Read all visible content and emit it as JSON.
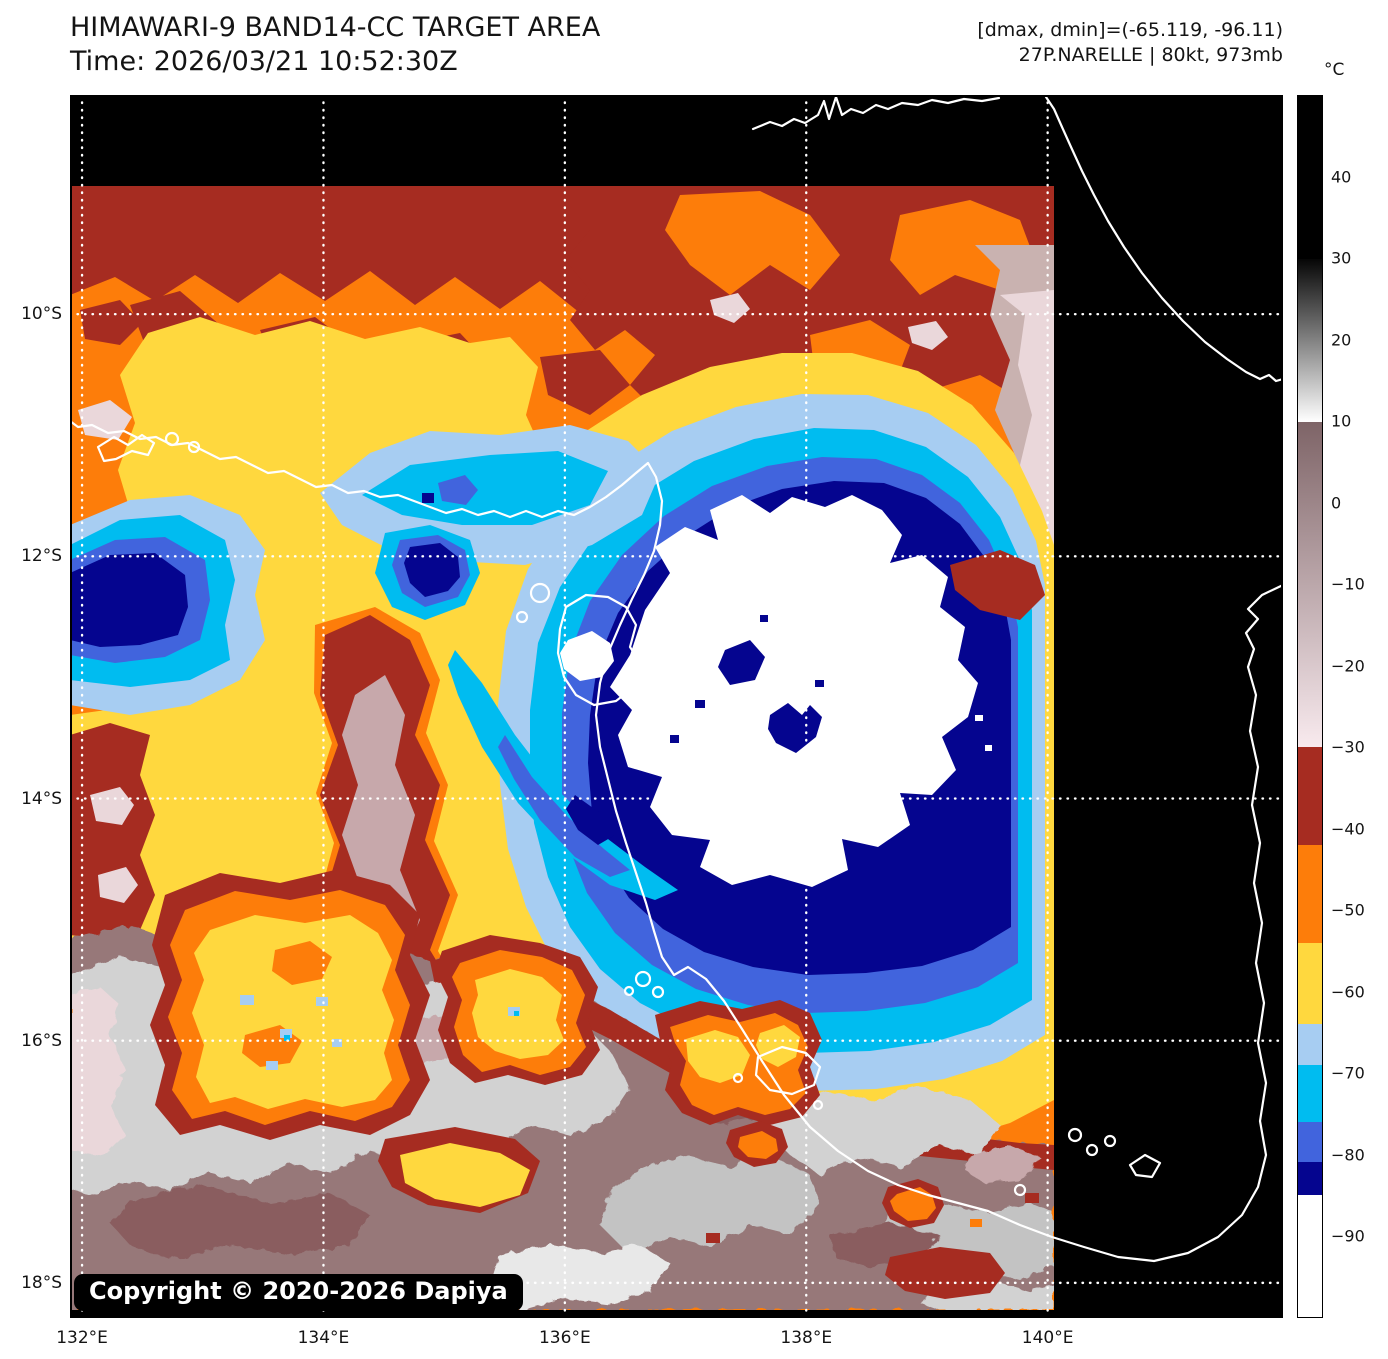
{
  "header": {
    "title": "HIMAWARI-9 BAND14-CC TARGET AREA",
    "time_line": "Time: 2026/03/21 10:52:30Z",
    "dmax_dmin_line": "[dmax, dmin]=(-65.119, -96.11)",
    "storm_line": "27P.NARELLE | 80kt, 973mb"
  },
  "map": {
    "copyright": "Copyright © 2020-2026 Dapiya",
    "lon_range": [
      131.9,
      141.95
    ],
    "lat_range": [
      8.19,
      18.29
    ],
    "x_ticks": [
      {
        "v": 132,
        "label": "132°E"
      },
      {
        "v": 134,
        "label": "134°E"
      },
      {
        "v": 136,
        "label": "136°E"
      },
      {
        "v": 138,
        "label": "138°E"
      },
      {
        "v": 140,
        "label": "140°E"
      }
    ],
    "y_ticks": [
      {
        "v": 10,
        "label": "10°S"
      },
      {
        "v": 12,
        "label": "12°S"
      },
      {
        "v": 14,
        "label": "14°S"
      },
      {
        "v": 16,
        "label": "16°S"
      },
      {
        "v": 18,
        "label": "18°S"
      }
    ]
  },
  "colorbar": {
    "unit": "°C",
    "top_value": 50,
    "bottom_value": -100,
    "ticks": [
      {
        "v": 40,
        "label": "40"
      },
      {
        "v": 30,
        "label": "30"
      },
      {
        "v": 20,
        "label": "20"
      },
      {
        "v": 10,
        "label": "10"
      },
      {
        "v": 0,
        "label": "0"
      },
      {
        "v": -10,
        "label": "−10"
      },
      {
        "v": -20,
        "label": "−20"
      },
      {
        "v": -30,
        "label": "−30"
      },
      {
        "v": -40,
        "label": "−40"
      },
      {
        "v": -50,
        "label": "−50"
      },
      {
        "v": -60,
        "label": "−60"
      },
      {
        "v": -70,
        "label": "−70"
      },
      {
        "v": -80,
        "label": "−80"
      },
      {
        "v": -90,
        "label": "−90"
      }
    ],
    "segments": [
      {
        "from": 50,
        "to": 30,
        "color": "#000000"
      },
      {
        "from": 30,
        "to": 10,
        "color": "#060606",
        "color_to": "#ffffff"
      },
      {
        "from": 10,
        "to": -30,
        "color": "#7e6467",
        "color_to": "#f8eaee"
      },
      {
        "from": -30,
        "to": -42,
        "color": "#a62c21"
      },
      {
        "from": -42,
        "to": -54,
        "color": "#fd7d0a"
      },
      {
        "from": -54,
        "to": -64,
        "color": "#ffd83e"
      },
      {
        "from": -64,
        "to": -69,
        "color": "#a7cdf2"
      },
      {
        "from": -69,
        "to": -76,
        "color": "#00bcf0"
      },
      {
        "from": -76,
        "to": -81,
        "color": "#4164dd"
      },
      {
        "from": -81,
        "to": -85,
        "color": "#05058f"
      },
      {
        "from": -85,
        "to": -100,
        "color": "#ffffff"
      }
    ]
  },
  "chart_data": {
    "type": "heatmap",
    "title": "HIMAWARI-9 BAND14-CC TARGET AREA",
    "time_utc": "2026/03/21 10:52:30Z",
    "dmax_c": -65.119,
    "dmin_c": -96.11,
    "storm": {
      "id": "27P",
      "name": "NARELLE",
      "max_wind_kt": 80,
      "min_pressure_mb": 973
    },
    "satellite": "HIMAWARI-9",
    "band": "BAND14-CC",
    "x_axis": {
      "ticks": [
        132,
        134,
        136,
        138,
        140
      ],
      "unit": "°E",
      "range": [
        131.9,
        141.95
      ]
    },
    "y_axis": {
      "ticks": [
        10,
        12,
        14,
        16,
        18
      ],
      "unit": "°S",
      "range": [
        8.19,
        18.29
      ]
    },
    "colorbar_unit": "°C",
    "colorbar_range": [
      50,
      -100
    ],
    "temperature_scale": [
      {
        "range_c": [
          50,
          30
        ],
        "color": "black"
      },
      {
        "range_c": [
          30,
          10
        ],
        "color": "black-to-white grayscale"
      },
      {
        "range_c": [
          10,
          -30
        ],
        "color": "brown-to-pale-pink"
      },
      {
        "range_c": [
          -30,
          -42
        ],
        "color": "#a62c21 dark red"
      },
      {
        "range_c": [
          -42,
          -54
        ],
        "color": "#fd7d0a orange"
      },
      {
        "range_c": [
          -54,
          -64
        ],
        "color": "#ffd83e yellow"
      },
      {
        "range_c": [
          -64,
          -69
        ],
        "color": "#a7cdf2 light blue"
      },
      {
        "range_c": [
          -69,
          -76
        ],
        "color": "#00bcf0 cyan"
      },
      {
        "range_c": [
          -76,
          -81
        ],
        "color": "#4164dd royal blue"
      },
      {
        "range_c": [
          -81,
          -85
        ],
        "color": "#05058f navy"
      },
      {
        "range_c": [
          -85,
          -100
        ],
        "color": "white"
      }
    ],
    "grid": "white dotted graticule every 2 degrees",
    "legend_position": "right vertical colorbar",
    "scene": "Tropical cyclone 27P NARELLE over the Gulf of Carpentaria; white sub -85C overshooting cloud tops ringed by navy/blue/cyan bands, yellow-orange anvil, dark-red -30s rim, gray-pink warm land to the south, black no-data margins with white coastlines"
  }
}
